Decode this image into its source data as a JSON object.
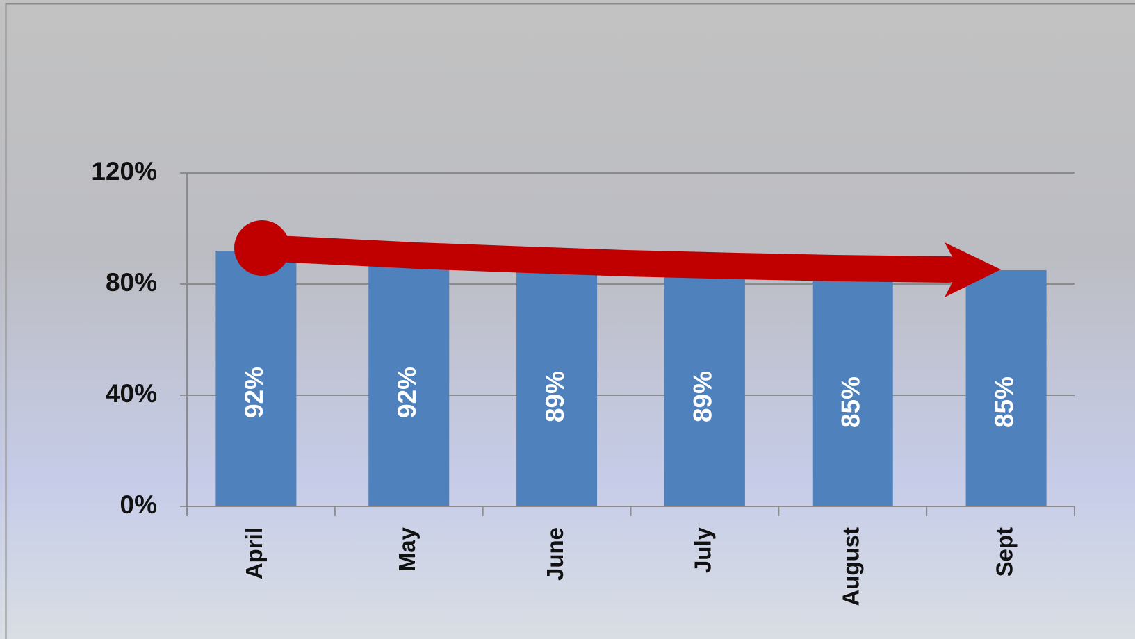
{
  "chart_data": {
    "type": "bar",
    "categories": [
      "April",
      "May",
      "June",
      "July",
      "August",
      "Sept"
    ],
    "values": [
      92,
      92,
      89,
      89,
      85,
      85
    ],
    "value_labels": [
      "92%",
      "92%",
      "89%",
      "89%",
      "85%",
      "85%"
    ],
    "color": "#4f81bd",
    "ylim": [
      0,
      120
    ],
    "yticks": [
      {
        "value": 0,
        "label": "0%"
      },
      {
        "value": 40,
        "label": "40%"
      },
      {
        "value": 80,
        "label": "80%"
      },
      {
        "value": 120,
        "label": "120%"
      }
    ],
    "grid": true
  }
}
